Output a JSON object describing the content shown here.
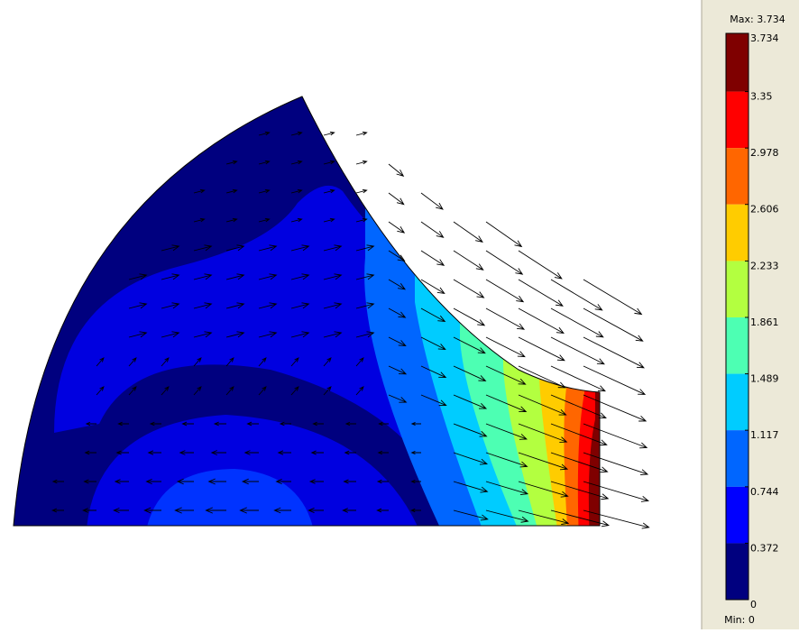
{
  "colorbar": {
    "max_label": "Max: 3.734",
    "min_label": "Min: 0",
    "ticks": [
      3.734,
      3.35,
      2.978,
      2.606,
      2.233,
      1.861,
      1.489,
      1.117,
      0.744,
      0.372,
      0
    ],
    "colors": [
      "#7f0000",
      "#ff0000",
      "#ff6600",
      "#ffcc00",
      "#b3ff40",
      "#4dffb3",
      "#00ccff",
      "#0066ff",
      "#0000ff",
      "#00007f"
    ]
  }
}
